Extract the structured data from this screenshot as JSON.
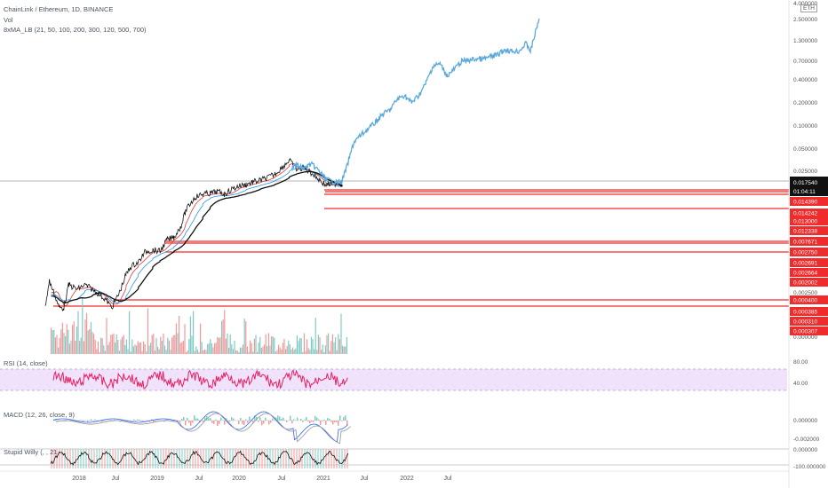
{
  "legend": {
    "title": "ChainLink / Ethereum, 1D, BINANCE",
    "vol": "Vol",
    "ma": "8xMA_LB (21, 50, 100, 200, 300, 120, 500, 700)",
    "rsi": "RSI (14, close)",
    "macd": "MACD (12, 26, close, 9)",
    "willy": "Stupid Willy (, , 21, ..."
  },
  "currency": "ETH",
  "current_price": "0.017540",
  "countdown": "01:04:11",
  "colors": {
    "price_black": "#111111",
    "projection_blue": "#5aa9dc",
    "line_red": "#ef2b2b",
    "ma_red": "#e53935",
    "ma_blue": "#2196f3",
    "rsi_pink": "#e91e63",
    "rsi_band": "#efe2fa",
    "vol_red": "#ef9a9a",
    "vol_green": "#80cbc4"
  },
  "price_axis": {
    "ticks": [
      "4.000000",
      "2.500000",
      "1.300000",
      "0.700000",
      "0.400000",
      "0.200000",
      "0.100000",
      "0.050000",
      "0.025000",
      "0.002500",
      "0.000000"
    ],
    "tags": [
      "0.014390",
      "0.014242",
      "0.013000",
      "0.012338",
      "0.007671",
      "0.002750",
      "0.002691",
      "0.002664",
      "0.002002",
      "0.000400",
      "0.000385",
      "0.000310",
      "0.000307"
    ]
  },
  "rsi_axis": [
    "80.00",
    "40.00"
  ],
  "macd_axis": [
    "0.000000",
    "-0.002000"
  ],
  "willy_axis": [
    "0.000000",
    "-100.000000"
  ],
  "x_axis": [
    "2018",
    "Jul",
    "2019",
    "Jul",
    "2020",
    "Jul",
    "2021",
    "Jul",
    "2022",
    "Jul"
  ],
  "chart_data": {
    "type": "line",
    "title": "ChainLink / Ethereum, 1D, BINANCE",
    "scale": "log",
    "series": [
      {
        "name": "LINK/ETH",
        "points": [
          [
            "2017-10-01",
            0.0004
          ],
          [
            "2017-10-20",
            0.0009
          ],
          [
            "2017-11-10",
            0.0006
          ],
          [
            "2017-12-01",
            0.0004
          ],
          [
            "2017-12-20",
            0.0004
          ],
          [
            "2018-01-10",
            0.0008
          ],
          [
            "2018-02-15",
            0.0007
          ],
          [
            "2018-03-20",
            0.0008
          ],
          [
            "2018-04-20",
            0.0007
          ],
          [
            "2018-05-20",
            0.0006
          ],
          [
            "2018-06-20",
            0.0005
          ],
          [
            "2018-07-10",
            0.0004
          ],
          [
            "2018-08-10",
            0.0006
          ],
          [
            "2018-09-10",
            0.0011
          ],
          [
            "2018-10-01",
            0.0014
          ],
          [
            "2018-11-01",
            0.0016
          ],
          [
            "2018-12-01",
            0.0022
          ],
          [
            "2019-01-01",
            0.0023
          ],
          [
            "2019-02-01",
            0.0022
          ],
          [
            "2019-03-01",
            0.0031
          ],
          [
            "2019-04-01",
            0.0034
          ],
          [
            "2019-05-01",
            0.0048
          ],
          [
            "2019-05-20",
            0.0075
          ],
          [
            "2019-06-10",
            0.0095
          ],
          [
            "2019-07-01",
            0.0115
          ],
          [
            "2019-08-01",
            0.0125
          ],
          [
            "2019-09-01",
            0.0128
          ],
          [
            "2019-10-01",
            0.0135
          ],
          [
            "2019-11-01",
            0.0125
          ],
          [
            "2019-12-01",
            0.0145
          ],
          [
            "2020-01-01",
            0.016
          ],
          [
            "2020-02-01",
            0.0168
          ],
          [
            "2020-03-01",
            0.018
          ],
          [
            "2020-04-01",
            0.019
          ],
          [
            "2020-05-01",
            0.0205
          ],
          [
            "2020-06-01",
            0.023
          ],
          [
            "2020-07-01",
            0.028
          ],
          [
            "2020-08-01",
            0.035
          ],
          [
            "2020-09-01",
            0.026
          ],
          [
            "2020-10-01",
            0.028
          ],
          [
            "2020-11-01",
            0.024
          ],
          [
            "2020-12-01",
            0.02
          ],
          [
            "2021-01-01",
            0.0165
          ],
          [
            "2021-02-01",
            0.0172
          ],
          [
            "2021-03-01",
            0.0175
          ],
          [
            "2021-03-10",
            0.01754
          ]
        ]
      },
      {
        "name": "Projection",
        "points": [
          [
            "2020-08-10",
            0.028
          ],
          [
            "2020-09-01",
            0.03
          ],
          [
            "2020-10-01",
            0.027
          ],
          [
            "2020-11-01",
            0.031
          ],
          [
            "2020-12-01",
            0.026
          ],
          [
            "2021-01-01",
            0.02
          ],
          [
            "2021-02-01",
            0.018
          ],
          [
            "2021-03-10",
            0.018
          ],
          [
            "2021-04-01",
            0.028
          ],
          [
            "2021-05-01",
            0.06
          ],
          [
            "2021-06-01",
            0.075
          ],
          [
            "2021-07-01",
            0.09
          ],
          [
            "2021-08-01",
            0.11
          ],
          [
            "2021-09-01",
            0.14
          ],
          [
            "2021-10-01",
            0.16
          ],
          [
            "2021-11-01",
            0.22
          ],
          [
            "2021-12-01",
            0.25
          ],
          [
            "2022-01-01",
            0.2
          ],
          [
            "2022-02-01",
            0.25
          ],
          [
            "2022-03-01",
            0.35
          ],
          [
            "2022-04-01",
            0.6
          ],
          [
            "2022-05-01",
            0.65
          ],
          [
            "2022-06-01",
            0.45
          ],
          [
            "2022-07-01",
            0.55
          ],
          [
            "2022-08-01",
            0.7
          ],
          [
            "2022-09-01",
            0.72
          ],
          [
            "2022-10-01",
            0.75
          ],
          [
            "2022-11-01",
            0.75
          ],
          [
            "2022-12-01",
            0.8
          ],
          [
            "2023-01-01",
            0.85
          ],
          [
            "2023-02-01",
            1.0
          ],
          [
            "2023-03-01",
            0.95
          ],
          [
            "2023-04-01",
            0.95
          ],
          [
            "2023-05-01",
            1.2
          ],
          [
            "2023-05-20",
            0.95
          ],
          [
            "2023-06-10",
            1.7
          ],
          [
            "2023-06-25",
            2.5
          ]
        ]
      }
    ]
  }
}
